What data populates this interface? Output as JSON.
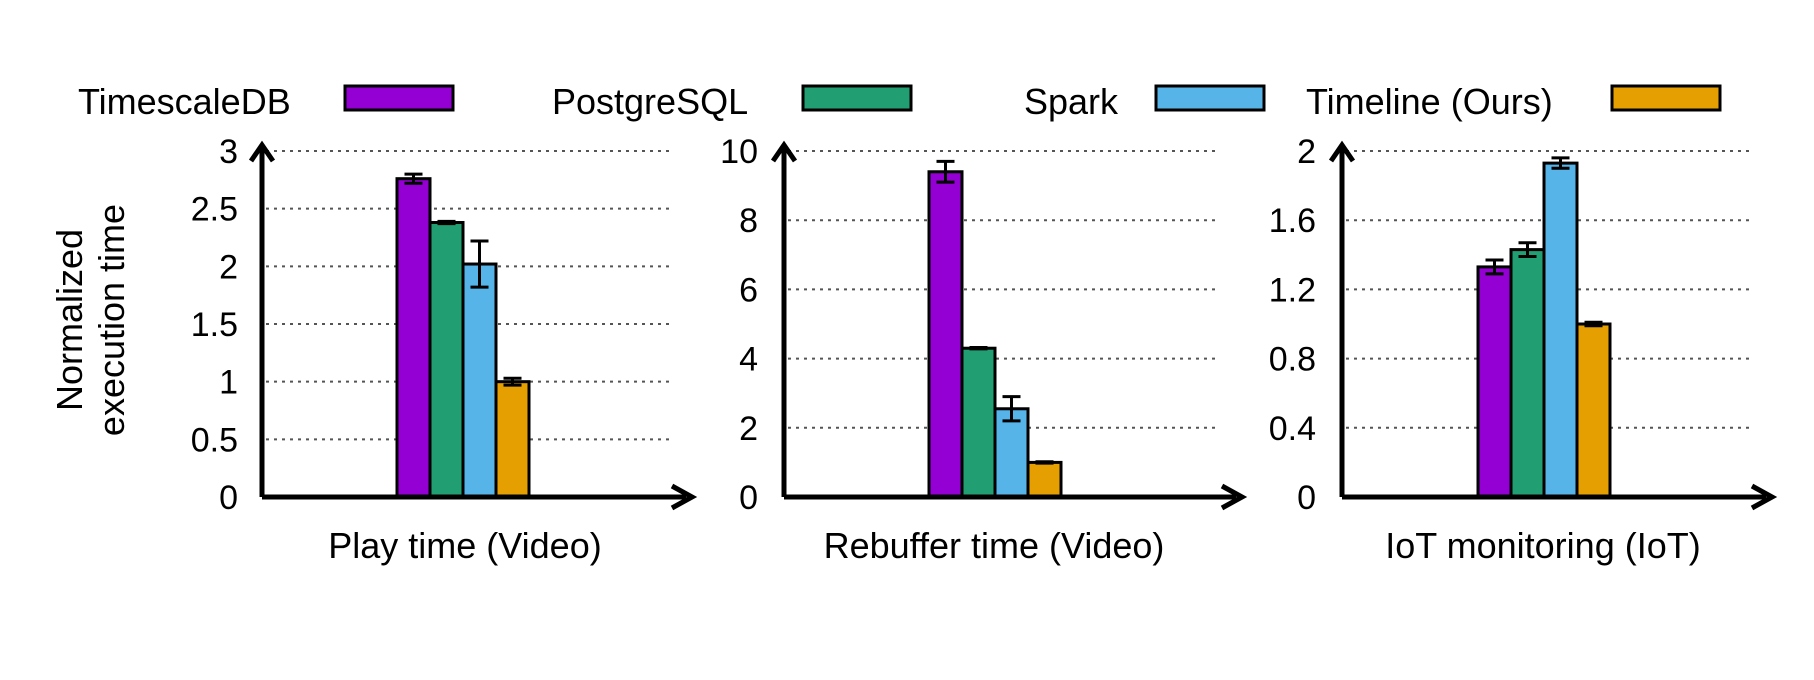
{
  "legend": [
    {
      "name": "TimescaleDB",
      "color": "#9400D3"
    },
    {
      "name": "PostgreSQL",
      "color": "#229E73"
    },
    {
      "name": "Spark",
      "color": "#56B4E9"
    },
    {
      "name": "Timeline (Ours)",
      "color": "#E69F00"
    }
  ],
  "ylabel_lines": [
    "Normalized",
    "execution time"
  ],
  "chart_data": [
    {
      "type": "bar",
      "xlabel": "Play time (Video)",
      "ylabel": "Normalized execution time",
      "ylim": [
        0,
        3
      ],
      "yticks": [
        "0",
        "0.5",
        "1",
        "1.5",
        "2",
        "2.5",
        "3"
      ],
      "ytick_values": [
        0,
        0.5,
        1,
        1.5,
        2,
        2.5,
        3
      ],
      "grid": true,
      "series": [
        {
          "name": "TimescaleDB",
          "values": [
            2.76
          ],
          "errors": [
            0.04
          ]
        },
        {
          "name": "PostgreSQL",
          "values": [
            2.38
          ],
          "errors": [
            0.01
          ]
        },
        {
          "name": "Spark",
          "values": [
            2.02
          ],
          "errors": [
            0.2
          ]
        },
        {
          "name": "Timeline (Ours)",
          "values": [
            1.0
          ],
          "errors": [
            0.03
          ]
        }
      ]
    },
    {
      "type": "bar",
      "xlabel": "Rebuffer time (Video)",
      "ylabel": "",
      "ylim": [
        0,
        10
      ],
      "yticks": [
        "0",
        "2",
        "4",
        "6",
        "8",
        "10"
      ],
      "ytick_values": [
        0,
        2,
        4,
        6,
        8,
        10
      ],
      "grid": true,
      "series": [
        {
          "name": "TimescaleDB",
          "values": [
            9.4
          ],
          "errors": [
            0.3
          ]
        },
        {
          "name": "PostgreSQL",
          "values": [
            4.3
          ],
          "errors": [
            0.02
          ]
        },
        {
          "name": "Spark",
          "values": [
            2.55
          ],
          "errors": [
            0.35
          ]
        },
        {
          "name": "Timeline (Ours)",
          "values": [
            1.0
          ],
          "errors": [
            0.02
          ]
        }
      ]
    },
    {
      "type": "bar",
      "xlabel": "IoT monitoring (IoT)",
      "ylabel": "",
      "ylim": [
        0,
        2
      ],
      "yticks": [
        "0",
        "0.4",
        "0.8",
        "1.2",
        "1.6",
        "2"
      ],
      "ytick_values": [
        0,
        0.4,
        0.8,
        1.2,
        1.6,
        2
      ],
      "grid": true,
      "series": [
        {
          "name": "TimescaleDB",
          "values": [
            1.33
          ],
          "errors": [
            0.04
          ]
        },
        {
          "name": "PostgreSQL",
          "values": [
            1.43
          ],
          "errors": [
            0.04
          ]
        },
        {
          "name": "Spark",
          "values": [
            1.93
          ],
          "errors": [
            0.03
          ]
        },
        {
          "name": "Timeline (Ours)",
          "values": [
            1.0
          ],
          "errors": [
            0.01
          ]
        }
      ]
    }
  ]
}
